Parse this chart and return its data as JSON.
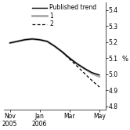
{
  "title": "",
  "ylabel": "%",
  "ylim": [
    4.78,
    5.45
  ],
  "yticks": [
    4.8,
    4.9,
    5.0,
    5.1,
    5.2,
    5.3,
    5.4
  ],
  "x_labels": [
    "Nov\n2005",
    "Jan\n2006",
    "Mar",
    "May"
  ],
  "x_positions": [
    0,
    2,
    4,
    6
  ],
  "published_trend_x": [
    0,
    0.5,
    1,
    1.5,
    2,
    2.5,
    3,
    3.5,
    4,
    4.5,
    5,
    5.5,
    6
  ],
  "published_trend_y": [
    5.195,
    5.205,
    5.215,
    5.22,
    5.215,
    5.205,
    5.175,
    5.14,
    5.1,
    5.065,
    5.035,
    5.01,
    4.995
  ],
  "line1_x": [
    0,
    0.5,
    1,
    1.5,
    2,
    2.5,
    3,
    3.5,
    4,
    4.5,
    5,
    5.5,
    6
  ],
  "line1_y": [
    5.195,
    5.205,
    5.215,
    5.22,
    5.215,
    5.205,
    5.175,
    5.14,
    5.1,
    5.065,
    5.035,
    5.005,
    4.985
  ],
  "line2_x": [
    3.5,
    4.0,
    4.5,
    5.0,
    5.5,
    6.0
  ],
  "line2_y": [
    5.14,
    5.095,
    5.05,
    5.005,
    4.96,
    4.92
  ],
  "background_color": "#ffffff",
  "legend_labels": [
    "Published trend",
    "1",
    "2"
  ],
  "legend_line_styles": [
    "solid",
    "solid",
    "dashed"
  ],
  "legend_line_colors": [
    "#000000",
    "#aaaaaa",
    "#000000"
  ],
  "legend_linewidths": [
    1.0,
    2.0,
    0.9
  ],
  "figsize": [
    1.66,
    1.66
  ],
  "dpi": 100
}
